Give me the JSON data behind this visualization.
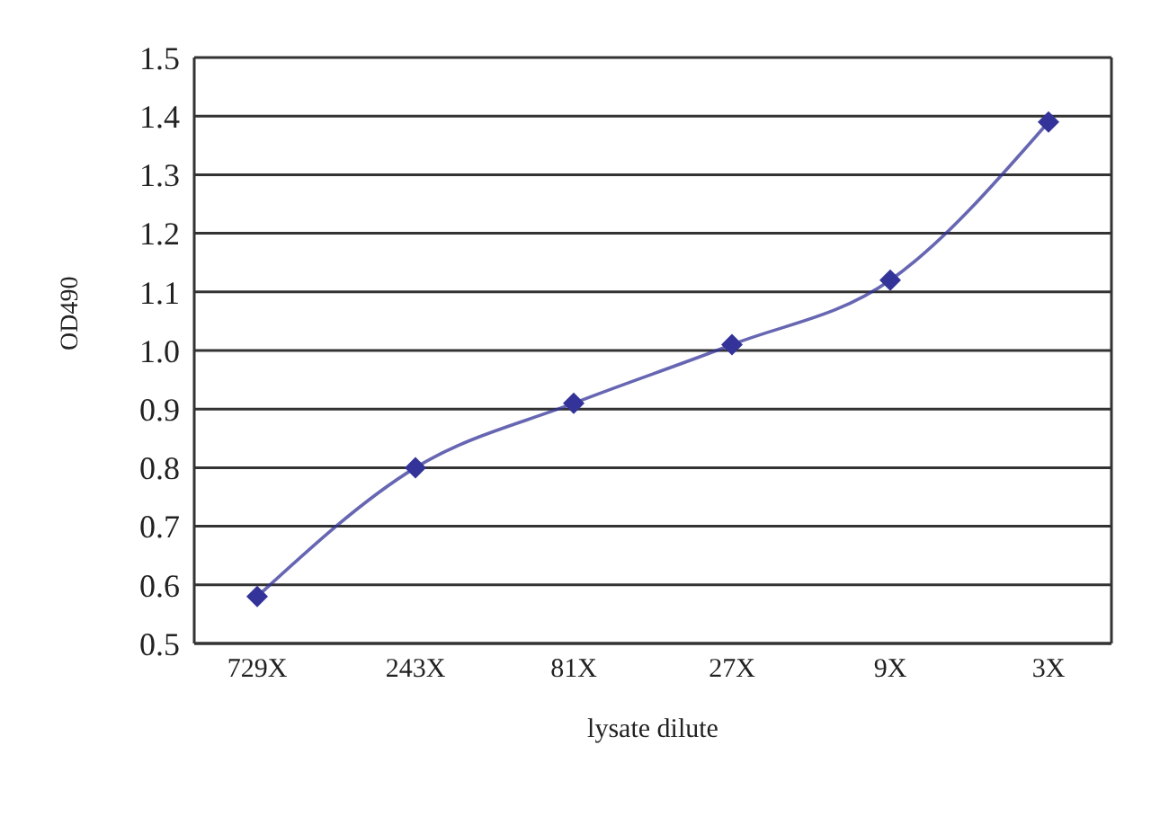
{
  "chart_data": {
    "type": "line",
    "xlabel": "lysate dilute",
    "ylabel": "OD490",
    "categories": [
      "729X",
      "243X",
      "81X",
      "27X",
      "9X",
      "3X"
    ],
    "series": [
      {
        "color": "#333399",
        "values": [
          0.58,
          0.8,
          0.91,
          1.01,
          1.12,
          1.39
        ]
      }
    ],
    "ylim": [
      0.5,
      1.5
    ],
    "yticks": [
      0.5,
      0.6,
      0.7,
      0.8,
      0.9,
      {
        "value": 1.0,
        "label": "1.0"
      },
      1.1,
      1.2,
      1.3,
      1.4,
      1.5
    ],
    "grid": "y",
    "marker": "diamond",
    "line_style": "solid"
  }
}
